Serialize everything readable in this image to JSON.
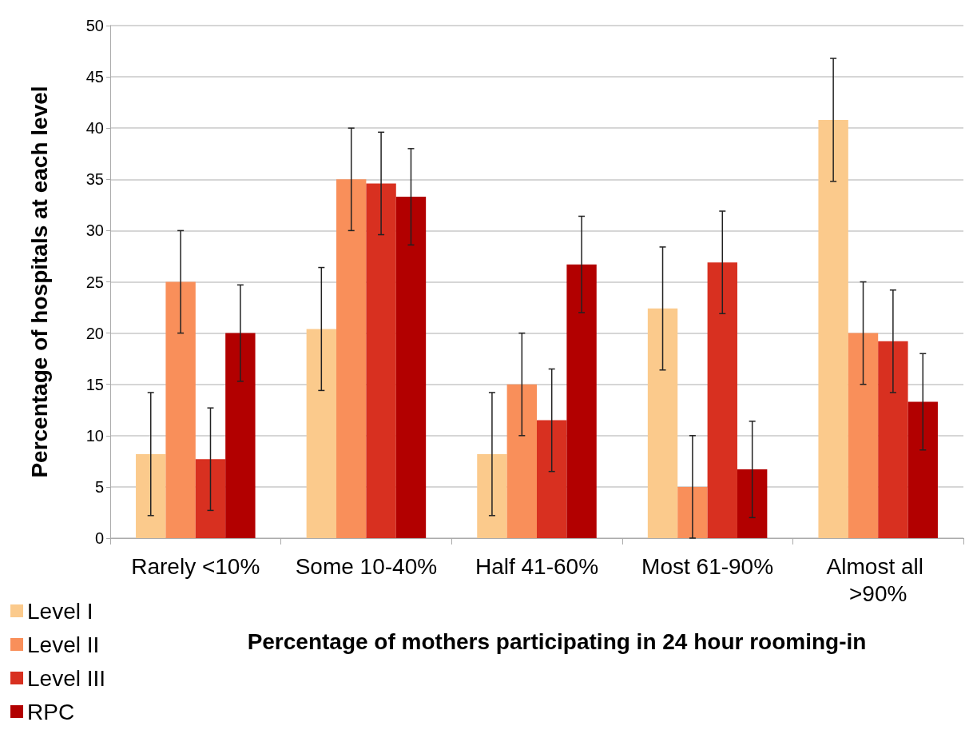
{
  "chart_data": {
    "type": "bar",
    "xlabel": "Percentage of mothers participating in 24 hour rooming-in",
    "ylabel": "Percentage of hospitals at each level",
    "categories": [
      "Rarely <10%",
      "Some 10-40%",
      "Half 41-60%",
      "Most 61-90%",
      "Almost all >90%"
    ],
    "series": [
      {
        "name": "Level I",
        "color": "#fbca8c",
        "values": [
          8.2,
          20.4,
          8.2,
          22.4,
          40.8
        ],
        "errors": [
          6,
          6,
          6,
          6,
          6
        ]
      },
      {
        "name": "Level II",
        "color": "#f98f5a",
        "values": [
          25,
          35,
          15,
          5,
          20
        ],
        "errors": [
          5,
          5,
          5,
          5,
          5
        ]
      },
      {
        "name": "Level III",
        "color": "#d83020",
        "values": [
          7.7,
          34.6,
          11.5,
          26.9,
          19.2
        ],
        "errors": [
          5,
          5,
          5,
          5,
          5
        ]
      },
      {
        "name": "RPC",
        "color": "#b20000",
        "values": [
          20,
          33.3,
          26.7,
          6.7,
          13.3
        ],
        "errors": [
          4.7,
          4.7,
          4.7,
          4.7,
          4.7
        ]
      }
    ],
    "ylim": [
      0,
      50
    ],
    "yticks": [
      0,
      5,
      10,
      15,
      20,
      25,
      30,
      35,
      40,
      45,
      50
    ],
    "grid": "y",
    "legend": "bottom left"
  }
}
